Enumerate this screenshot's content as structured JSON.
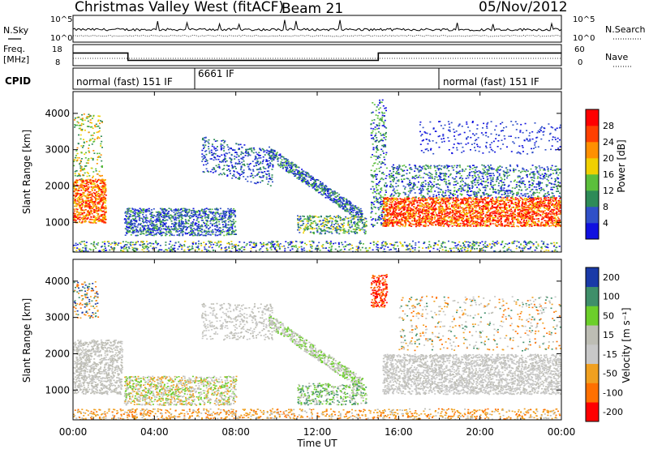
{
  "header": {
    "title": "Christmas Valley West (fitACF)",
    "beam": "Beam 21",
    "date": "05/Nov/2012"
  },
  "top_panels": {
    "nsky": {
      "label": "N.Sky",
      "left_ticks": [
        "10^5",
        "10^0"
      ],
      "right_ticks": [
        "10^5",
        "10^0"
      ],
      "right_label": "N.Search"
    },
    "freq": {
      "label_lines": [
        "Freq.",
        "[MHz]"
      ],
      "left_ticks": [
        "18",
        "8"
      ],
      "right_ticks": [
        "60",
        "0"
      ],
      "right_label": "Nave"
    },
    "cpid": {
      "label": "CPID",
      "segments": [
        "normal (fast) 151 IF",
        "6661 IF",
        "normal (fast) 151 IF"
      ]
    }
  },
  "x_axis": {
    "label": "Time UT",
    "ticks": [
      "00:00",
      "04:00",
      "08:00",
      "12:00",
      "16:00",
      "20:00",
      "00:00"
    ]
  },
  "colors": {
    "power": [
      "#1010e0",
      "#3050c8",
      "#2e8b57",
      "#5cbf3c",
      "#f0d000",
      "#ff9000",
      "#ff4000",
      "#ff0000"
    ],
    "velocity": [
      "#1a3aa8",
      "#3f8f6a",
      "#6ccf2a",
      "#bdbdb4",
      "#c8c8c8",
      "#f0a020",
      "#ff7000",
      "#ff0000"
    ]
  },
  "chart_data": [
    {
      "type": "line",
      "name": "N.Sky",
      "x_range": [
        0,
        24
      ],
      "ylim": [
        "10^0",
        "10^5"
      ],
      "note_series": "time series of noise"
    },
    {
      "type": "line",
      "name": "Freq.",
      "xlabel": "",
      "ylabel": "Freq. [MHz]",
      "ylim": [
        8,
        18
      ],
      "series": [
        {
          "name": "Freq.",
          "x": [
            0,
            2.7,
            2.7,
            15.0,
            15.0,
            24
          ],
          "values": [
            14,
            14,
            10.5,
            10.5,
            14,
            14
          ]
        }
      ]
    },
    {
      "type": "heatmap",
      "name": "Power",
      "xlabel": "Time UT",
      "ylabel": "Slant Range [km]",
      "x_ticks": [
        "00:00",
        "04:00",
        "08:00",
        "12:00",
        "16:00",
        "20:00",
        "00:00"
      ],
      "y_ticks": [
        1000,
        2000,
        3000,
        4000
      ],
      "ylim": [
        180,
        4600
      ],
      "colorbar": {
        "label": "Power [dB]",
        "ticks": [
          4,
          8,
          12,
          16,
          20,
          24,
          28
        ],
        "range": [
          0,
          32
        ]
      }
    },
    {
      "type": "heatmap",
      "name": "Velocity",
      "xlabel": "Time UT",
      "ylabel": "Slant Range [km]",
      "x_ticks": [
        "00:00",
        "04:00",
        "08:00",
        "12:00",
        "16:00",
        "20:00",
        "00:00"
      ],
      "y_ticks": [
        1000,
        2000,
        3000,
        4000
      ],
      "ylim": [
        180,
        4600
      ],
      "colorbar": {
        "label": "Velocity [m s⁻¹]",
        "ticks": [
          200,
          100,
          50,
          15,
          -15,
          -50,
          -100,
          -200
        ]
      }
    }
  ]
}
